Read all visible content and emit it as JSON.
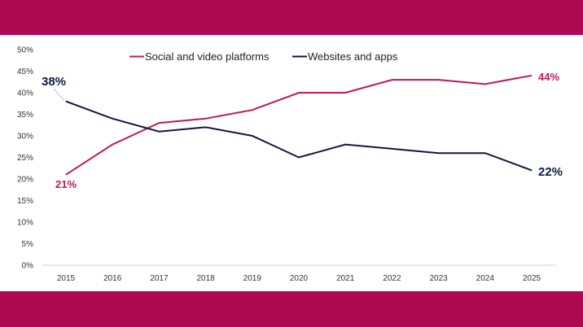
{
  "colors": {
    "band": "#ae0a52",
    "social": "#c0175c",
    "websites": "#0e1a3c",
    "axis": "#d6e3f3"
  },
  "chart_data": {
    "type": "line",
    "categories": [
      "2015",
      "2016",
      "2017",
      "2018",
      "2019",
      "2020",
      "2021",
      "2022",
      "2023",
      "2024",
      "2025"
    ],
    "ylim": [
      0,
      50
    ],
    "yticks": [
      "0%",
      "5%",
      "10%",
      "15%",
      "20%",
      "25%",
      "30%",
      "35%",
      "40%",
      "45%",
      "50%"
    ],
    "grid": false,
    "legend": "top-center",
    "series": [
      {
        "name": "Social and video platforms",
        "values": [
          21,
          28,
          33,
          34,
          36,
          40,
          40,
          43,
          43,
          42,
          44
        ],
        "start_label": "21%",
        "end_label": "44%"
      },
      {
        "name": "Websites and apps",
        "values": [
          38,
          34,
          31,
          32,
          30,
          25,
          28,
          27,
          26,
          26,
          22
        ],
        "start_label": "38%",
        "end_label": "22%"
      }
    ]
  }
}
